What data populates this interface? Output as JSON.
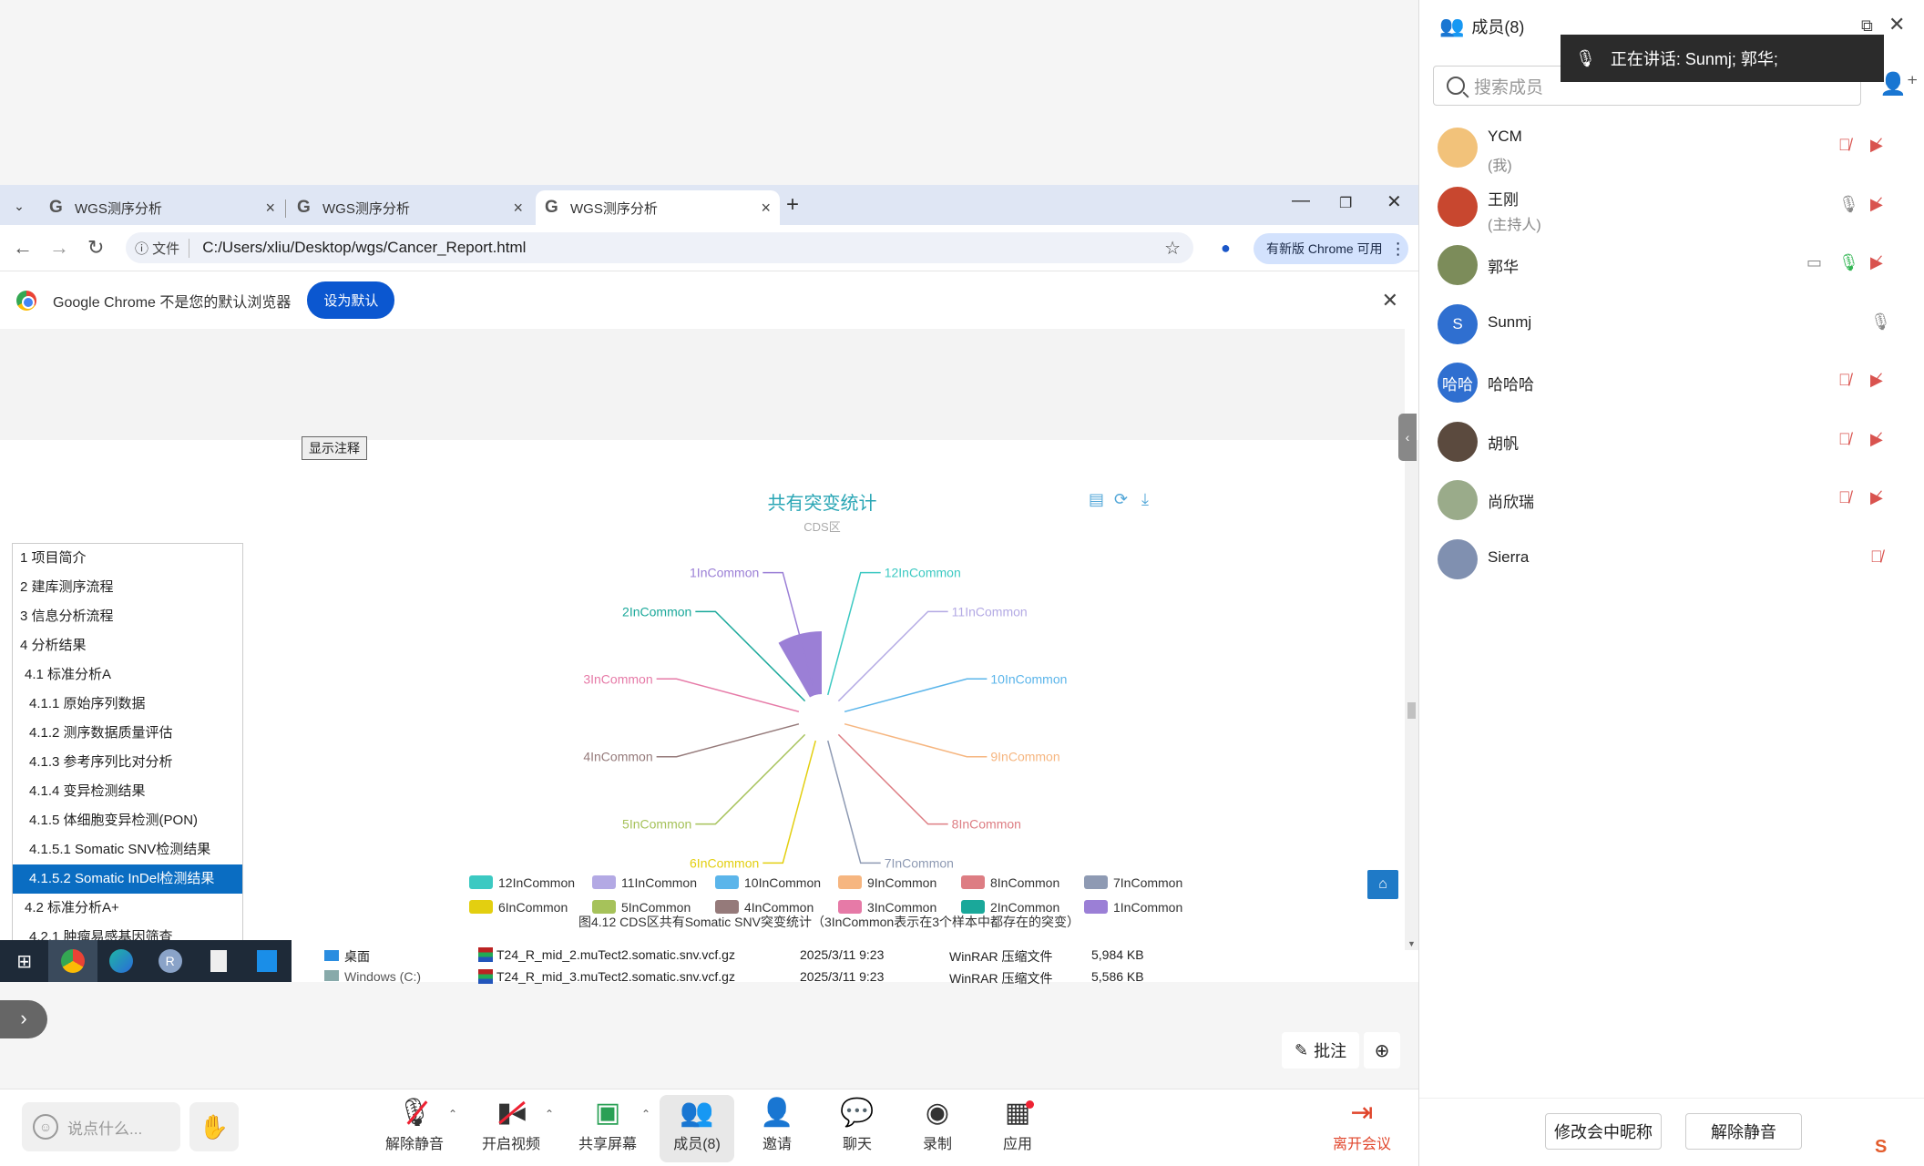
{
  "browser": {
    "tabs": [
      {
        "label": "WGS测序分析"
      },
      {
        "label": "WGS测序分析"
      },
      {
        "label": "WGS测序分析"
      }
    ],
    "url_chip": "文件",
    "url": "C:/Users/xliu/Desktop/wgs/Cancer_Report.html",
    "update_label": "有新版 Chrome 可用",
    "infobar_message": "Google Chrome 不是您的默认浏览器",
    "infobar_button": "设为默认"
  },
  "page": {
    "show_notes_button": "显示注释",
    "toc": [
      {
        "label": "1 项目简介",
        "indent": 0
      },
      {
        "label": "2 建库测序流程",
        "indent": 0
      },
      {
        "label": "3 信息分析流程",
        "indent": 0
      },
      {
        "label": "4 分析结果",
        "indent": 0
      },
      {
        "label": "4.1 标准分析A",
        "indent": 1
      },
      {
        "label": "4.1.1 原始序列数据",
        "indent": 2
      },
      {
        "label": "4.1.2 测序数据质量评估",
        "indent": 2
      },
      {
        "label": "4.1.3 参考序列比对分析",
        "indent": 2
      },
      {
        "label": "4.1.4 变异检测结果",
        "indent": 2
      },
      {
        "label": "4.1.5 体细胞变异检测(PON)",
        "indent": 2
      },
      {
        "label": "4.1.5.1 Somatic SNV检测结果",
        "indent": 2
      },
      {
        "label": "4.1.5.2 Somatic InDel检测结果",
        "indent": 2,
        "active": true
      },
      {
        "label": "4.2 标准分析A+",
        "indent": 1
      },
      {
        "label": "4.2.1 肿瘤易感基因筛查",
        "indent": 2
      }
    ],
    "caption": "图4.12 CDS区共有Somatic SNV突变统计（3InCommon表示在3个样本中都存在的突变）",
    "explorer": {
      "folders": [
        "桌面",
        "Windows (C:)"
      ],
      "files": [
        {
          "name": "T24_R_mid_2.muTect2.somatic.snv.vcf.gz",
          "date": "2025/3/11 9:23",
          "type": "WinRAR 压缩文件",
          "size": "5,984 KB"
        },
        {
          "name": "T24_R_mid_3.muTect2.somatic.snv.vcf.gz",
          "date": "2025/3/11 9:23",
          "type": "WinRAR 压缩文件",
          "size": "5,586 KB"
        }
      ]
    },
    "annotate_label": "批注"
  },
  "chart_data": {
    "type": "pie",
    "subtype": "nightingale-rose",
    "title": "共有突变统计",
    "subtitle": "CDS区",
    "categories": [
      "12InCommon",
      "11InCommon",
      "10InCommon",
      "9InCommon",
      "8InCommon",
      "7InCommon",
      "6InCommon",
      "5InCommon",
      "4InCommon",
      "3InCommon",
      "2InCommon",
      "1InCommon"
    ],
    "colors": [
      "#3cc9c2",
      "#b3a9e4",
      "#5bb5ea",
      "#f6b680",
      "#dd7d83",
      "#8e9ab3",
      "#e3cf10",
      "#a6c25a",
      "#957a7a",
      "#e67aa7",
      "#1aa89a",
      "#9b7fd6"
    ],
    "values": [
      1,
      1,
      1,
      1,
      1,
      1,
      1,
      1,
      1,
      1,
      1,
      100
    ],
    "legend_position": "bottom"
  },
  "meeting": {
    "say_placeholder": "说点什么...",
    "buttons": [
      {
        "label": "解除静音",
        "icon": "mic-off-icon"
      },
      {
        "label": "开启视频",
        "icon": "video-off-icon"
      },
      {
        "label": "共享屏幕",
        "icon": "share-screen-icon"
      },
      {
        "label": "成员(8)",
        "icon": "members-icon"
      },
      {
        "label": "邀请",
        "icon": "invite-icon"
      },
      {
        "label": "聊天",
        "icon": "chat-icon"
      },
      {
        "label": "录制",
        "icon": "record-icon"
      },
      {
        "label": "应用",
        "icon": "apps-icon"
      }
    ],
    "leave_label": "离开会议"
  },
  "panel": {
    "title": "成员(8)",
    "speaking_label": "正在讲话:  Sunmj; 郭华;",
    "search_placeholder": "搜索成员",
    "members": [
      {
        "name": "YCM",
        "role": "(我)",
        "avatar_color": "#f2c27a",
        "initial": "",
        "mic": "muted",
        "video": "off"
      },
      {
        "name": "王刚",
        "role": "(主持人)",
        "avatar_color": "#c8472f",
        "initial": "",
        "mic": "on",
        "video": "off"
      },
      {
        "name": "郭华",
        "role": "",
        "avatar_color": "#7c8c5a",
        "initial": "",
        "mic": "talking",
        "video": "off",
        "sharing": true
      },
      {
        "name": "Sunmj",
        "role": "",
        "avatar_color": "#2f6fd0",
        "initial": "S",
        "mic": "on"
      },
      {
        "name": "哈哈哈",
        "role": "",
        "avatar_color": "#2f6fd0",
        "initial": "哈哈",
        "mic": "muted",
        "video": "off"
      },
      {
        "name": "胡帆",
        "role": "",
        "avatar_color": "#5b4a3e",
        "initial": "",
        "mic": "muted",
        "video": "off"
      },
      {
        "name": "尚欣瑞",
        "role": "",
        "avatar_color": "#9aab8a",
        "initial": "",
        "mic": "muted",
        "video": "off"
      },
      {
        "name": "Sierra",
        "role": "",
        "avatar_color": "#8090b0",
        "initial": "",
        "mic": "muted"
      }
    ],
    "rename_button": "修改会中昵称",
    "unmute_button": "解除静音"
  }
}
